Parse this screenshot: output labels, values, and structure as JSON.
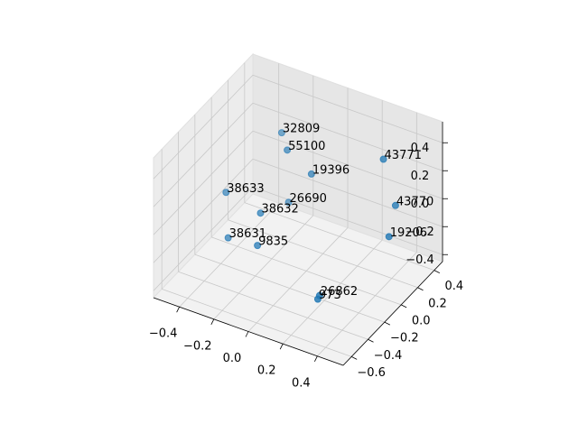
{
  "chart_data": {
    "type": "scatter3d",
    "labels": [
      "32809",
      "55100",
      "19396",
      "43771",
      "38633",
      "26690",
      "38632",
      "43770",
      "19206",
      "38631",
      "9835",
      "26862",
      "973"
    ],
    "x": [
      -0.21,
      -0.12,
      0.02,
      0.38,
      -0.36,
      -0.17,
      -0.16,
      0.45,
      0.47,
      -0.29,
      -0.12,
      0.24,
      0.23
    ],
    "y": [
      0.14,
      0.02,
      0.02,
      0.14,
      -0.22,
      0.14,
      -0.22,
      0.14,
      0.02,
      -0.34,
      -0.34,
      -0.34,
      -0.34
    ],
    "z": [
      0.36,
      0.35,
      0.24,
      0.43,
      0.09,
      -0.12,
      0.03,
      0.13,
      -0.01,
      -0.13,
      -0.11,
      -0.31,
      -0.34
    ],
    "color": "#1f77b4",
    "xlim": [
      -0.55,
      0.55
    ],
    "ylim": [
      -0.7,
      0.5
    ],
    "zlim": [
      -0.45,
      0.55
    ],
    "xticks": [
      {
        "value": -0.4,
        "label": "−0.4"
      },
      {
        "value": -0.2,
        "label": "−0.2"
      },
      {
        "value": 0,
        "label": "0.0"
      },
      0.2,
      0.4
    ],
    "yticks": [
      {
        "value": -0.6,
        "label": "−0.6"
      },
      {
        "value": -0.4,
        "label": "−0.4"
      },
      {
        "value": -0.2,
        "label": "−0.2"
      },
      {
        "value": 0,
        "label": "0.0"
      },
      0.2,
      0.4
    ],
    "zticks": [
      {
        "value": -0.4,
        "label": "−0.4"
      },
      {
        "value": -0.2,
        "label": "−0.2"
      },
      {
        "value": 0,
        "label": "0.0"
      },
      0.2,
      0.4
    ],
    "grid": true
  }
}
